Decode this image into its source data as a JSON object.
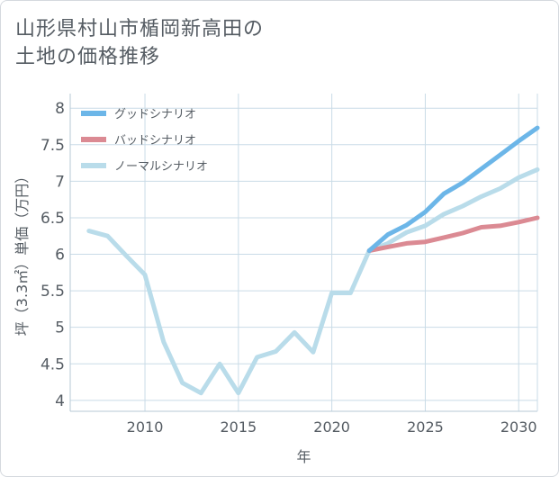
{
  "title_lines": [
    "山形県村山市楯岡新高田の",
    "土地の価格推移"
  ],
  "chart_data": {
    "type": "line",
    "xlabel": "年",
    "ylabel": "坪（3.3㎡）単価（万円）",
    "xlim": [
      2006,
      2031
    ],
    "ylim": [
      3.85,
      8.2
    ],
    "xticks": [
      2010,
      2015,
      2020,
      2025,
      2030
    ],
    "yticks": [
      4,
      4.5,
      5,
      5.5,
      6,
      6.5,
      7,
      7.5,
      8
    ],
    "ytick_labels": [
      "4",
      "4.5",
      "5",
      "5.5",
      "6",
      "6.5",
      "7",
      "7.5",
      "8"
    ],
    "grid": true,
    "legend_position": "top-left",
    "series": [
      {
        "name": "グッドシナリオ",
        "color": "#6cb6e8",
        "x": [
          2022,
          2023,
          2024,
          2025,
          2026,
          2027,
          2028,
          2029,
          2030,
          2031
        ],
        "values": [
          6.05,
          6.27,
          6.4,
          6.58,
          6.83,
          6.98,
          7.17,
          7.36,
          7.55,
          7.73
        ]
      },
      {
        "name": "バッドシナリオ",
        "color": "#db8a93",
        "x": [
          2022,
          2023,
          2024,
          2025,
          2026,
          2027,
          2028,
          2029,
          2030,
          2031
        ],
        "values": [
          6.05,
          6.1,
          6.15,
          6.17,
          6.23,
          6.29,
          6.37,
          6.39,
          6.44,
          6.5
        ]
      },
      {
        "name": "ノーマルシナリオ",
        "color": "#b9dcea",
        "x": [
          2007,
          2008,
          2009,
          2010,
          2011,
          2012,
          2013,
          2014,
          2015,
          2016,
          2017,
          2018,
          2019,
          2020,
          2021,
          2022,
          2023,
          2024,
          2025,
          2026,
          2027,
          2028,
          2029,
          2030,
          2031
        ],
        "values": [
          6.32,
          6.25,
          5.98,
          5.72,
          4.8,
          4.24,
          4.1,
          4.5,
          4.1,
          4.59,
          4.67,
          4.93,
          4.66,
          5.47,
          5.47,
          6.05,
          6.15,
          6.3,
          6.39,
          6.55,
          6.66,
          6.79,
          6.9,
          7.05,
          7.16
        ]
      }
    ]
  }
}
